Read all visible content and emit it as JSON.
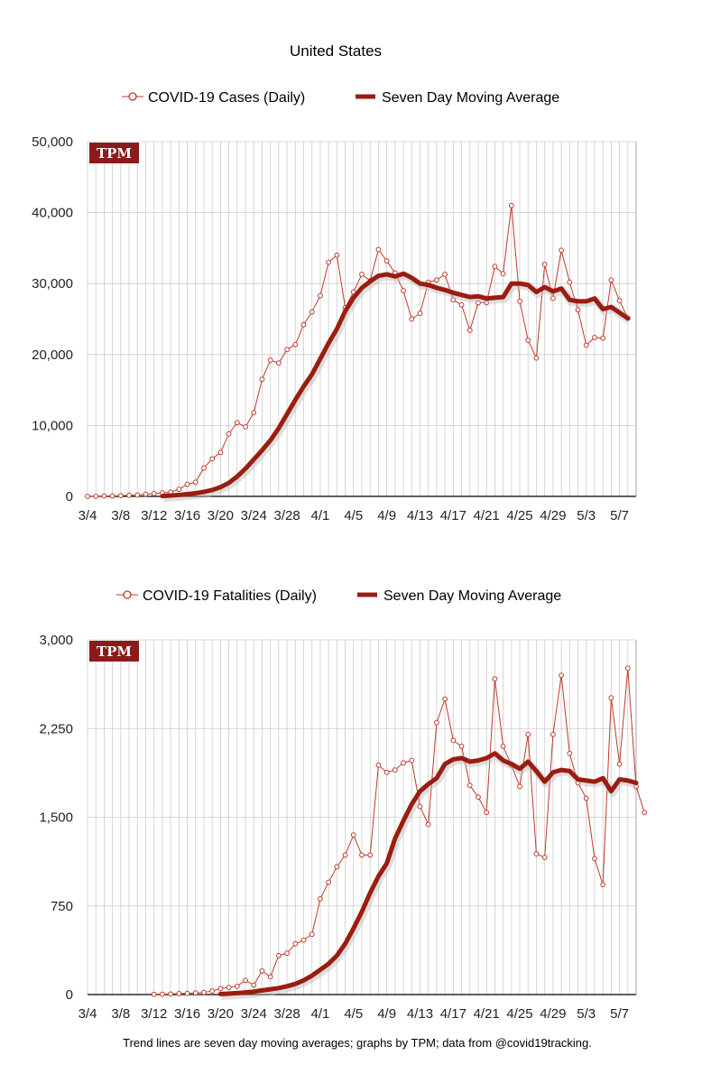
{
  "page": {
    "title": "United States",
    "footer": "Trend lines are seven day moving averages; graphs by TPM; data from @covid19tracking."
  },
  "colors": {
    "daily": "#c0392b",
    "average": "#9b1c10",
    "grid": "#cccccc",
    "logo_bg": "#8b1a1a"
  },
  "chart_data": [
    {
      "type": "line",
      "logo": "TPM",
      "legend": {
        "daily": "COVID-19 Cases (Daily)",
        "average": "Seven Day Moving Average",
        "position": "top"
      },
      "ylim": [
        0,
        50000
      ],
      "y_ticks": [
        0,
        10000,
        20000,
        30000,
        40000,
        50000
      ],
      "y_tick_labels": [
        "0",
        "10,000",
        "20,000",
        "30,000",
        "40,000",
        "50,000"
      ],
      "x_tick_labels": [
        "3/4",
        "3/8",
        "3/12",
        "3/16",
        "3/20",
        "3/24",
        "3/28",
        "4/1",
        "4/5",
        "4/9",
        "4/13",
        "4/17",
        "4/21",
        "4/25",
        "4/29",
        "5/3",
        "5/7"
      ],
      "x_start_date": "3/4",
      "x_days": 67,
      "series": [
        {
          "name": "COVID-19 Cases (Daily)",
          "style": "markers",
          "values": [
            0,
            0,
            50,
            60,
            100,
            150,
            180,
            300,
            400,
            500,
            600,
            1000,
            1700,
            2000,
            4000,
            5300,
            6200,
            8800,
            10400,
            9800,
            11800,
            16500,
            19200,
            18800,
            20700,
            21400,
            24200,
            26000,
            28300,
            33000,
            34000,
            26600,
            28800,
            31300,
            30400,
            34800,
            33200,
            31500,
            29000,
            25000,
            25800,
            30200,
            30500,
            31300,
            27700,
            27000,
            23400,
            27300,
            27300,
            32400,
            31400,
            41000,
            27500,
            22000,
            19500,
            32700,
            27900,
            34700,
            30200,
            26300,
            21300,
            22400,
            22300,
            30500,
            27600,
            25100
          ],
          "start_index": 0
        },
        {
          "name": "Seven Day Moving Average",
          "style": "thick",
          "values": [
            50,
            120,
            200,
            320,
            450,
            640,
            900,
            1300,
            1900,
            2800,
            3900,
            5200,
            6500,
            7900,
            9600,
            11600,
            13600,
            15500,
            17200,
            19400,
            21600,
            23600,
            26100,
            28000,
            29400,
            30300,
            31100,
            31300,
            31000,
            31400,
            30800,
            30000,
            29800,
            29400,
            29100,
            28700,
            28400,
            28100,
            28200,
            27900,
            28000,
            28100,
            30000,
            30000,
            29800,
            28800,
            29500,
            28900,
            29300,
            27700,
            27500,
            27500,
            27900,
            26400,
            26700,
            25900,
            25100
          ],
          "start_index": 9
        }
      ]
    },
    {
      "type": "line",
      "logo": "TPM",
      "legend": {
        "daily": "COVID-19 Fatalities (Daily)",
        "average": "Seven Day Moving Average",
        "position": "top"
      },
      "ylim": [
        0,
        3000
      ],
      "y_ticks": [
        0,
        750,
        1500,
        2250,
        3000
      ],
      "y_tick_labels": [
        "0",
        "750",
        "1,500",
        "2,250",
        "3,000"
      ],
      "x_tick_labels": [
        "3/4",
        "3/8",
        "3/12",
        "3/16",
        "3/20",
        "3/24",
        "3/28",
        "4/1",
        "4/5",
        "4/9",
        "4/13",
        "4/17",
        "4/21",
        "4/25",
        "4/29",
        "5/3",
        "5/7"
      ],
      "x_start_date": "3/4",
      "x_days": 67,
      "series": [
        {
          "name": "COVID-19 Fatalities (Daily)",
          "style": "markers",
          "values": [
            2,
            3,
            5,
            8,
            10,
            14,
            18,
            30,
            50,
            60,
            70,
            120,
            80,
            200,
            150,
            330,
            350,
            430,
            460,
            510,
            810,
            950,
            1080,
            1180,
            1350,
            1180,
            1180,
            1940,
            1880,
            1900,
            1960,
            1980,
            1590,
            1440,
            2300,
            2500,
            2150,
            2100,
            1770,
            1670,
            1540,
            2670,
            2100,
            1940,
            1760,
            2200,
            1190,
            1160,
            2200,
            2700,
            2040,
            1790,
            1660,
            1150,
            930,
            2510,
            1950,
            2760,
            1760,
            1540
          ],
          "start_index": 8
        },
        {
          "name": "Seven Day Moving Average",
          "style": "thick",
          "values": [
            5,
            8,
            12,
            18,
            25,
            35,
            45,
            55,
            70,
            90,
            120,
            160,
            210,
            260,
            330,
            430,
            560,
            700,
            860,
            1000,
            1110,
            1320,
            1470,
            1610,
            1720,
            1780,
            1830,
            1950,
            1990,
            2000,
            1970,
            1980,
            2000,
            2040,
            1980,
            1950,
            1910,
            1970,
            1890,
            1800,
            1880,
            1900,
            1890,
            1820,
            1810,
            1800,
            1830,
            1720,
            1820,
            1810,
            1790
          ],
          "start_index": 16
        }
      ]
    }
  ]
}
